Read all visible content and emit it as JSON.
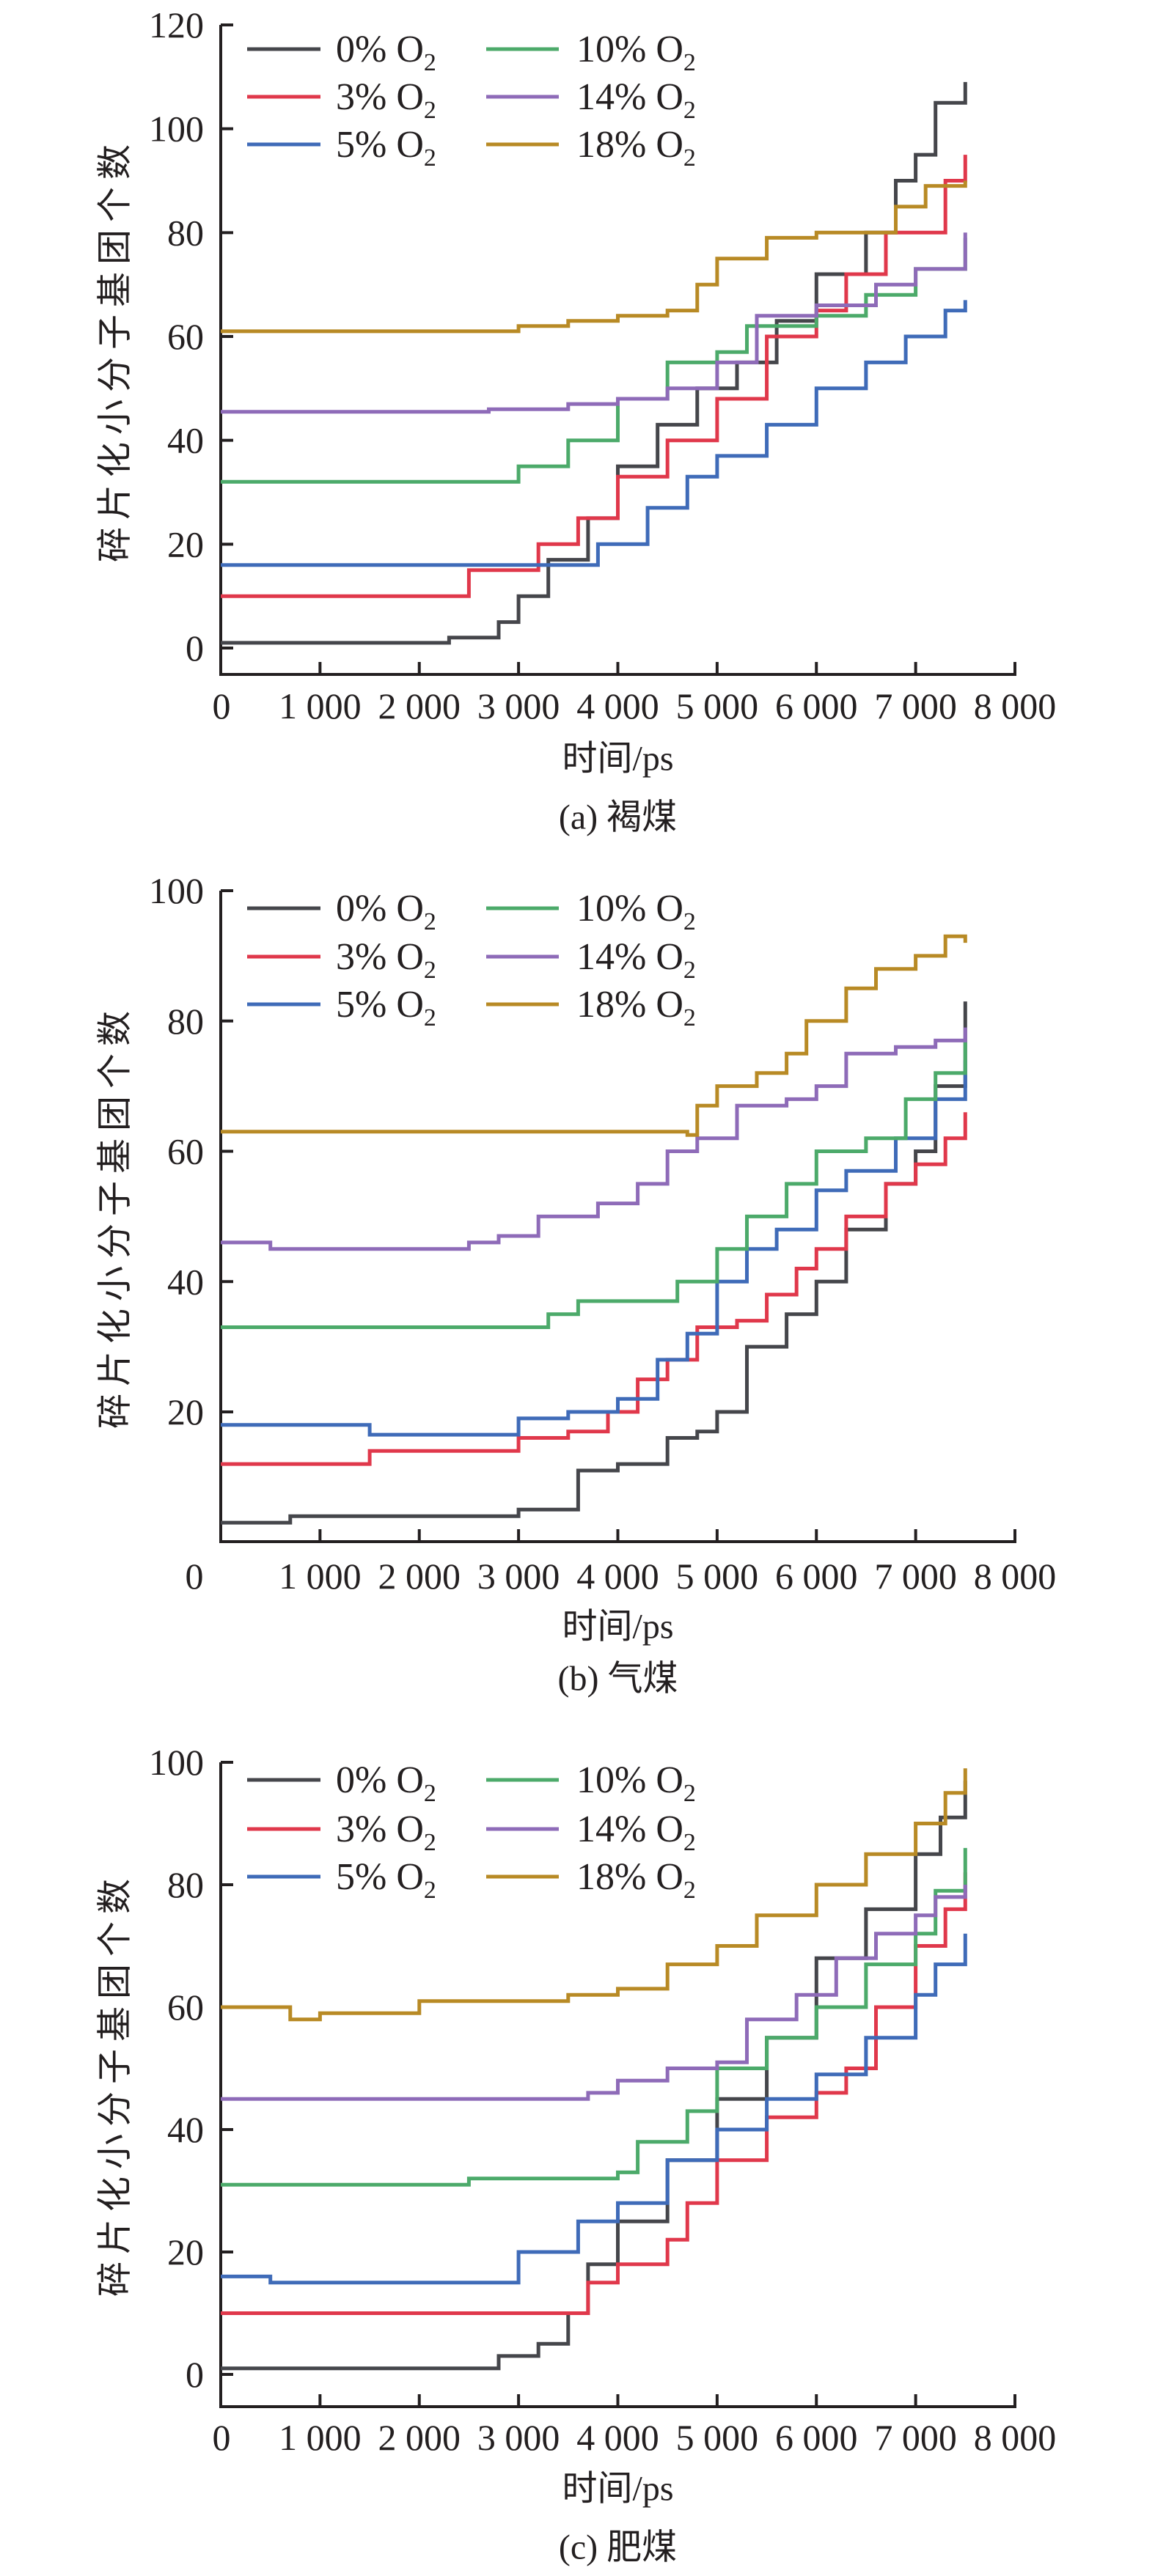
{
  "figure": {
    "panels": [
      "a",
      "b",
      "c"
    ]
  },
  "legend": [
    {
      "id": "o0",
      "label": "0% O",
      "sub": "2",
      "color": "#45464b"
    },
    {
      "id": "o3",
      "label": "3% O",
      "sub": "2",
      "color": "#e0384b"
    },
    {
      "id": "o5",
      "label": "5% O",
      "sub": "2",
      "color": "#3f6bb8"
    },
    {
      "id": "o10",
      "label": "10% O",
      "sub": "2",
      "color": "#4caa6a"
    },
    {
      "id": "o14",
      "label": "14% O",
      "sub": "2",
      "color": "#8e6bb8"
    },
    {
      "id": "o18",
      "label": "18% O",
      "sub": "2",
      "color": "#b88a25"
    }
  ],
  "chart_data": [
    {
      "type": "line",
      "title": "(a) 褐煤",
      "caption": "(a) 褐煤",
      "xlabel": "时间/ps",
      "ylabel": "碎片化小分子基团个数",
      "xlim": [
        0,
        8000
      ],
      "ylim": [
        -5,
        120
      ],
      "xticks": [
        0,
        1000,
        2000,
        3000,
        4000,
        5000,
        6000,
        7000,
        8000
      ],
      "xtick_labels": [
        "0",
        "1 000",
        "2 000",
        "3 000",
        "4 000",
        "5 000",
        "6 000",
        "7 000",
        "8 000"
      ],
      "yticks": [
        0,
        20,
        40,
        60,
        80,
        100,
        120
      ],
      "ytick_labels": [
        "0",
        "20",
        "40",
        "60",
        "80",
        "100",
        "120"
      ],
      "legend_position": "top-left",
      "grid": false,
      "series": [
        {
          "name": "0% O2",
          "x": [
            0,
            2000,
            2300,
            2800,
            3000,
            3300,
            3700,
            4000,
            4400,
            4800,
            5200,
            5600,
            6000,
            6500,
            6800,
            7000,
            7200,
            7500
          ],
          "values": [
            1,
            1,
            2,
            5,
            10,
            17,
            25,
            35,
            43,
            50,
            55,
            63,
            72,
            80,
            90,
            95,
            105,
            109
          ]
        },
        {
          "name": "3% O2",
          "x": [
            0,
            2400,
            2500,
            3000,
            3200,
            3600,
            4000,
            4500,
            5000,
            5500,
            6000,
            6300,
            6700,
            7000,
            7300,
            7500
          ],
          "values": [
            10,
            10,
            15,
            15,
            20,
            25,
            33,
            40,
            48,
            60,
            65,
            72,
            80,
            80,
            90,
            95
          ]
        },
        {
          "name": "5% O2",
          "x": [
            0,
            3500,
            3800,
            4300,
            4700,
            5000,
            5500,
            6000,
            6500,
            6900,
            7300,
            7500
          ],
          "values": [
            16,
            16,
            20,
            27,
            33,
            37,
            43,
            50,
            55,
            60,
            65,
            67
          ]
        },
        {
          "name": "10% O2",
          "x": [
            0,
            2800,
            3000,
            3500,
            4000,
            4500,
            5000,
            5300,
            6000,
            6500,
            7000,
            7500
          ],
          "values": [
            32,
            32,
            35,
            40,
            48,
            55,
            57,
            62,
            64,
            68,
            73,
            79
          ]
        },
        {
          "name": "14% O2",
          "x": [
            0,
            2700,
            3500,
            4000,
            4500,
            5000,
            5400,
            6000,
            6600,
            7000,
            7500
          ],
          "values": [
            45.5,
            46,
            47,
            48,
            50,
            55,
            64,
            66,
            70,
            73,
            80
          ]
        },
        {
          "name": "18% O2",
          "x": [
            0,
            2500,
            3000,
            3500,
            4000,
            4500,
            4800,
            5000,
            5500,
            6000,
            6700,
            6800,
            7100,
            7500
          ],
          "values": [
            61,
            61,
            62,
            63,
            64,
            65,
            70,
            75,
            79,
            80,
            80,
            85,
            89,
            90
          ]
        }
      ]
    },
    {
      "type": "line",
      "title": "(b) 气煤",
      "caption": "(b) 气煤",
      "xlabel": "时间/ps",
      "ylabel": "碎片化小分子基团个数",
      "xlim": [
        0,
        8000
      ],
      "ylim": [
        0,
        100
      ],
      "xticks": [
        0,
        1000,
        2000,
        3000,
        4000,
        5000,
        6000,
        7000,
        8000
      ],
      "xtick_labels": [
        "0",
        "1 000",
        "2 000",
        "3 000",
        "4 000",
        "5 000",
        "6 000",
        "7 000",
        "8 000"
      ],
      "yticks": [
        20,
        40,
        60,
        80,
        100
      ],
      "ytick_labels": [
        "20",
        "40",
        "60",
        "80",
        "100"
      ],
      "legend_position": "top-left",
      "grid": false,
      "series": [
        {
          "name": "0% O2",
          "x": [
            0,
            700,
            2800,
            3000,
            3500,
            3600,
            4000,
            4500,
            4800,
            5000,
            5300,
            5700,
            6000,
            6300,
            6700,
            7000,
            7200,
            7500
          ],
          "values": [
            3,
            4,
            4,
            5,
            5,
            11,
            12,
            16,
            17,
            20,
            30,
            35,
            40,
            48,
            55,
            60,
            70,
            83
          ]
        },
        {
          "name": "3% O2",
          "x": [
            0,
            1300,
            1500,
            2800,
            3000,
            3500,
            3900,
            4200,
            4500,
            4800,
            5200,
            5500,
            5800,
            6000,
            6300,
            6700,
            7000,
            7300,
            7500
          ],
          "values": [
            12,
            12,
            14,
            14,
            16,
            17,
            20,
            25,
            28,
            33,
            34,
            38,
            42,
            45,
            50,
            55,
            58,
            62,
            66
          ]
        },
        {
          "name": "5% O2",
          "x": [
            0,
            1200,
            1500,
            2800,
            3000,
            3500,
            4000,
            4400,
            4700,
            5000,
            5300,
            5600,
            6000,
            6300,
            6800,
            7200,
            7500
          ],
          "values": [
            18,
            18,
            16.5,
            16.5,
            19,
            20,
            22,
            28,
            32,
            40,
            45,
            48,
            54,
            57,
            62,
            68,
            74
          ]
        },
        {
          "name": "10% O2",
          "x": [
            0,
            3100,
            3300,
            3600,
            4400,
            4600,
            5000,
            5300,
            5700,
            6000,
            6500,
            6900,
            7200,
            7500
          ],
          "values": [
            33,
            33,
            35,
            37,
            37,
            40,
            45,
            50,
            55,
            60,
            62,
            68,
            72,
            77
          ]
        },
        {
          "name": "14% O2",
          "x": [
            0,
            500,
            2000,
            2500,
            2800,
            3200,
            3800,
            4200,
            4500,
            4800,
            5200,
            5700,
            6000,
            6300,
            6800,
            7200,
            7500
          ],
          "values": [
            46,
            45,
            45,
            46,
            47,
            50,
            52,
            55,
            60,
            62,
            67,
            68,
            70,
            75,
            76,
            77,
            79
          ]
        },
        {
          "name": "18% O2",
          "x": [
            0,
            4700,
            4800,
            5000,
            5400,
            5700,
            5900,
            6300,
            6600,
            7000,
            7300,
            7500
          ],
          "values": [
            63,
            62.5,
            67,
            70,
            72,
            75,
            80,
            85,
            88,
            90,
            93,
            92
          ]
        }
      ]
    },
    {
      "type": "line",
      "title": "(c) 肥煤",
      "caption": "(c) 肥煤",
      "xlabel": "时间/ps",
      "ylabel": "碎片化小分子基团个数",
      "xlim": [
        0,
        8000
      ],
      "ylim": [
        -5,
        100
      ],
      "xticks": [
        0,
        1000,
        2000,
        3000,
        4000,
        5000,
        6000,
        7000,
        8000
      ],
      "xtick_labels": [
        "0",
        "1 000",
        "2 000",
        "3 000",
        "4 000",
        "5 000",
        "6 000",
        "7 000",
        "8 000"
      ],
      "yticks": [
        0,
        20,
        40,
        60,
        80,
        100
      ],
      "ytick_labels": [
        "0",
        "20",
        "40",
        "60",
        "80",
        "100"
      ],
      "legend_position": "top-left",
      "grid": false,
      "series": [
        {
          "name": "0% O2",
          "x": [
            0,
            2700,
            2800,
            3200,
            3500,
            3700,
            4000,
            4500,
            5000,
            5500,
            6000,
            6500,
            7000,
            7250,
            7500
          ],
          "values": [
            1,
            1,
            3,
            5,
            10,
            18,
            25,
            35,
            45,
            55,
            68,
            76,
            85,
            91,
            97
          ]
        },
        {
          "name": "3% O2",
          "x": [
            0,
            3500,
            3700,
            4000,
            4500,
            4700,
            5000,
            5500,
            6000,
            6300,
            6600,
            7000,
            7300,
            7500
          ],
          "values": [
            10,
            10,
            15,
            18,
            22,
            28,
            35,
            42,
            46,
            50,
            60,
            70,
            76,
            82
          ]
        },
        {
          "name": "5% O2",
          "x": [
            0,
            500,
            2800,
            3000,
            3600,
            4000,
            4500,
            5000,
            5500,
            6000,
            6500,
            7000,
            7200,
            7500
          ],
          "values": [
            16,
            15,
            15,
            20,
            25,
            28,
            35,
            40,
            45,
            49,
            55,
            62,
            67,
            72
          ]
        },
        {
          "name": "10% O2",
          "x": [
            0,
            2200,
            2500,
            4000,
            4200,
            4700,
            5000,
            5500,
            6000,
            6500,
            7000,
            7200,
            7500
          ],
          "values": [
            31,
            31,
            32,
            33,
            38,
            43,
            50,
            55,
            60,
            67,
            72,
            79,
            86
          ]
        },
        {
          "name": "14% O2",
          "x": [
            0,
            3500,
            3700,
            4000,
            4500,
            5000,
            5300,
            5800,
            6200,
            6600,
            7000,
            7200,
            7500
          ],
          "values": [
            45,
            45,
            46,
            48,
            50,
            51,
            58,
            62,
            68,
            72,
            75,
            78,
            80
          ]
        },
        {
          "name": "18% O2",
          "x": [
            0,
            700,
            1000,
            2000,
            3500,
            4000,
            4500,
            5000,
            5400,
            6000,
            6500,
            7000,
            7300,
            7500
          ],
          "values": [
            60,
            58,
            59,
            61,
            62,
            63,
            67,
            70,
            75,
            80,
            85,
            90,
            95,
            99
          ]
        }
      ]
    }
  ]
}
